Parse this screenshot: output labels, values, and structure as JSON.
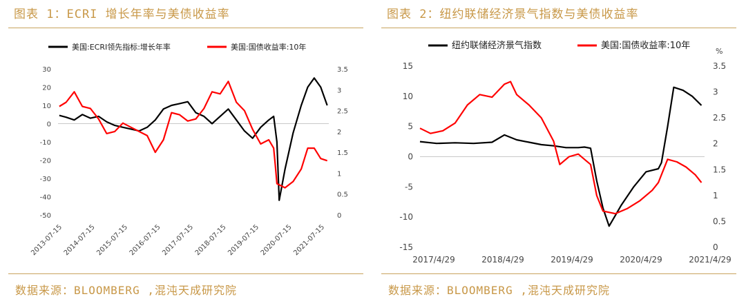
{
  "chart_data": [
    {
      "type": "line",
      "title": "图表 1：ECRI 增长年率与美债收益率",
      "source": "数据来源：BLOOMBERG ,混沌天成研究院",
      "x_tick_labels": [
        "2013-07-15",
        "2014-07-15",
        "2015-07-15",
        "2016-07-15",
        "2017-07-15",
        "2018-07-15",
        "2019-07-15",
        "2020-07-15",
        "2021-07-15"
      ],
      "x_range": [
        2013.5,
        2021.85
      ],
      "y_left": {
        "range": [
          -50,
          30
        ],
        "ticks": [
          -50,
          -40,
          -30,
          -20,
          -10,
          0,
          10,
          20,
          30
        ]
      },
      "y_right": {
        "range": [
          0,
          3.5
        ],
        "ticks": [
          0,
          0.5,
          1,
          1.5,
          2,
          2.5,
          3,
          3.5
        ]
      },
      "zero_line": true,
      "legend_position": "top",
      "series": [
        {
          "name": "美国:ECRI领先指标:增长年率",
          "color": "#000000",
          "axis": "left",
          "x": [
            2013.54,
            2013.75,
            2014.0,
            2014.25,
            2014.5,
            2014.75,
            2015.0,
            2015.25,
            2015.5,
            2015.75,
            2016.0,
            2016.25,
            2016.5,
            2016.75,
            2017.0,
            2017.25,
            2017.5,
            2017.75,
            2018.0,
            2018.25,
            2018.5,
            2018.75,
            2019.0,
            2019.25,
            2019.5,
            2019.75,
            2020.0,
            2020.15,
            2020.25,
            2020.32,
            2020.5,
            2020.75,
            2021.0,
            2021.2,
            2021.4,
            2021.6,
            2021.8
          ],
          "y": [
            4.5,
            3.5,
            2,
            5,
            3,
            4,
            1,
            -1,
            -2,
            -3,
            -4,
            -2,
            2,
            8,
            10,
            11,
            12,
            6,
            4,
            0,
            4,
            8,
            2,
            -4,
            -8,
            -2,
            2,
            4,
            -10,
            -42,
            -25,
            -5,
            10,
            20,
            25,
            20,
            10
          ]
        },
        {
          "name": "美国:国债收益率:10年",
          "color": "#ff0000",
          "axis": "right",
          "x": [
            2013.54,
            2013.75,
            2014.0,
            2014.25,
            2014.5,
            2014.75,
            2015.0,
            2015.25,
            2015.5,
            2015.75,
            2016.0,
            2016.25,
            2016.5,
            2016.75,
            2017.0,
            2017.25,
            2017.5,
            2017.75,
            2018.0,
            2018.25,
            2018.5,
            2018.75,
            2019.0,
            2019.25,
            2019.5,
            2019.75,
            2020.0,
            2020.15,
            2020.2,
            2020.25,
            2020.5,
            2020.75,
            2021.0,
            2021.2,
            2021.4,
            2021.6,
            2021.8
          ],
          "y": [
            2.6,
            2.7,
            2.95,
            2.6,
            2.55,
            2.3,
            1.95,
            2.0,
            2.2,
            2.1,
            2.0,
            1.9,
            1.5,
            1.8,
            2.45,
            2.4,
            2.25,
            2.3,
            2.55,
            2.95,
            2.9,
            3.2,
            2.7,
            2.5,
            2.05,
            1.7,
            1.8,
            1.6,
            1.2,
            0.75,
            0.65,
            0.8,
            1.1,
            1.6,
            1.6,
            1.35,
            1.3
          ]
        }
      ]
    },
    {
      "type": "line",
      "title": "图表 2：纽约联储经济景气指数与美债收益率",
      "source": "数据来源：BLOOMBERG ,混沌天成研究院",
      "x_tick_labels": [
        "2017/4/29",
        "2018/4/29",
        "2019/4/29",
        "2020/4/29",
        "2021/4/29"
      ],
      "x_range": [
        2017.33,
        2021.95
      ],
      "y_left": {
        "range": [
          -15,
          15
        ],
        "ticks": [
          -15,
          -10,
          -5,
          0,
          5,
          10,
          15
        ]
      },
      "y_right": {
        "range": [
          0,
          3.5
        ],
        "ticks": [
          0,
          0.5,
          1,
          1.5,
          2,
          2.5,
          3,
          3.5
        ],
        "unit": "%"
      },
      "zero_line": true,
      "legend_position": "top",
      "series": [
        {
          "name": "纽约联储经济景气指数",
          "color": "#000000",
          "axis": "left",
          "x": [
            2017.33,
            2017.6,
            2017.9,
            2018.2,
            2018.5,
            2018.7,
            2018.9,
            2019.1,
            2019.3,
            2019.5,
            2019.7,
            2019.9,
            2020.0,
            2020.1,
            2020.2,
            2020.3,
            2020.4,
            2020.6,
            2020.8,
            2021.0,
            2021.2,
            2021.25,
            2021.35,
            2021.45,
            2021.6,
            2021.75,
            2021.9
          ],
          "y": [
            2.5,
            2.2,
            2.3,
            2.2,
            2.4,
            3.6,
            2.8,
            2.4,
            2.0,
            1.8,
            1.5,
            1.5,
            1.6,
            1.4,
            -4.0,
            -8.5,
            -11.5,
            -8.0,
            -5.0,
            -2.5,
            -2.0,
            -1.0,
            5.0,
            11.5,
            11.0,
            10.0,
            8.5
          ]
        },
        {
          "name": "美国:国债收益率:10年",
          "color": "#ff0000",
          "axis": "right",
          "x": [
            2017.33,
            2017.5,
            2017.7,
            2017.9,
            2018.1,
            2018.3,
            2018.5,
            2018.7,
            2018.8,
            2018.9,
            2019.1,
            2019.3,
            2019.5,
            2019.6,
            2019.75,
            2019.9,
            2020.0,
            2020.1,
            2020.2,
            2020.3,
            2020.5,
            2020.7,
            2020.9,
            2021.1,
            2021.2,
            2021.35,
            2021.5,
            2021.65,
            2021.8,
            2021.9
          ],
          "y": [
            2.3,
            2.2,
            2.25,
            2.4,
            2.75,
            2.95,
            2.9,
            3.15,
            3.2,
            2.95,
            2.75,
            2.5,
            2.05,
            1.6,
            1.75,
            1.8,
            1.7,
            1.6,
            1.0,
            0.7,
            0.65,
            0.75,
            0.9,
            1.1,
            1.25,
            1.7,
            1.65,
            1.55,
            1.4,
            1.25
          ]
        }
      ]
    }
  ]
}
